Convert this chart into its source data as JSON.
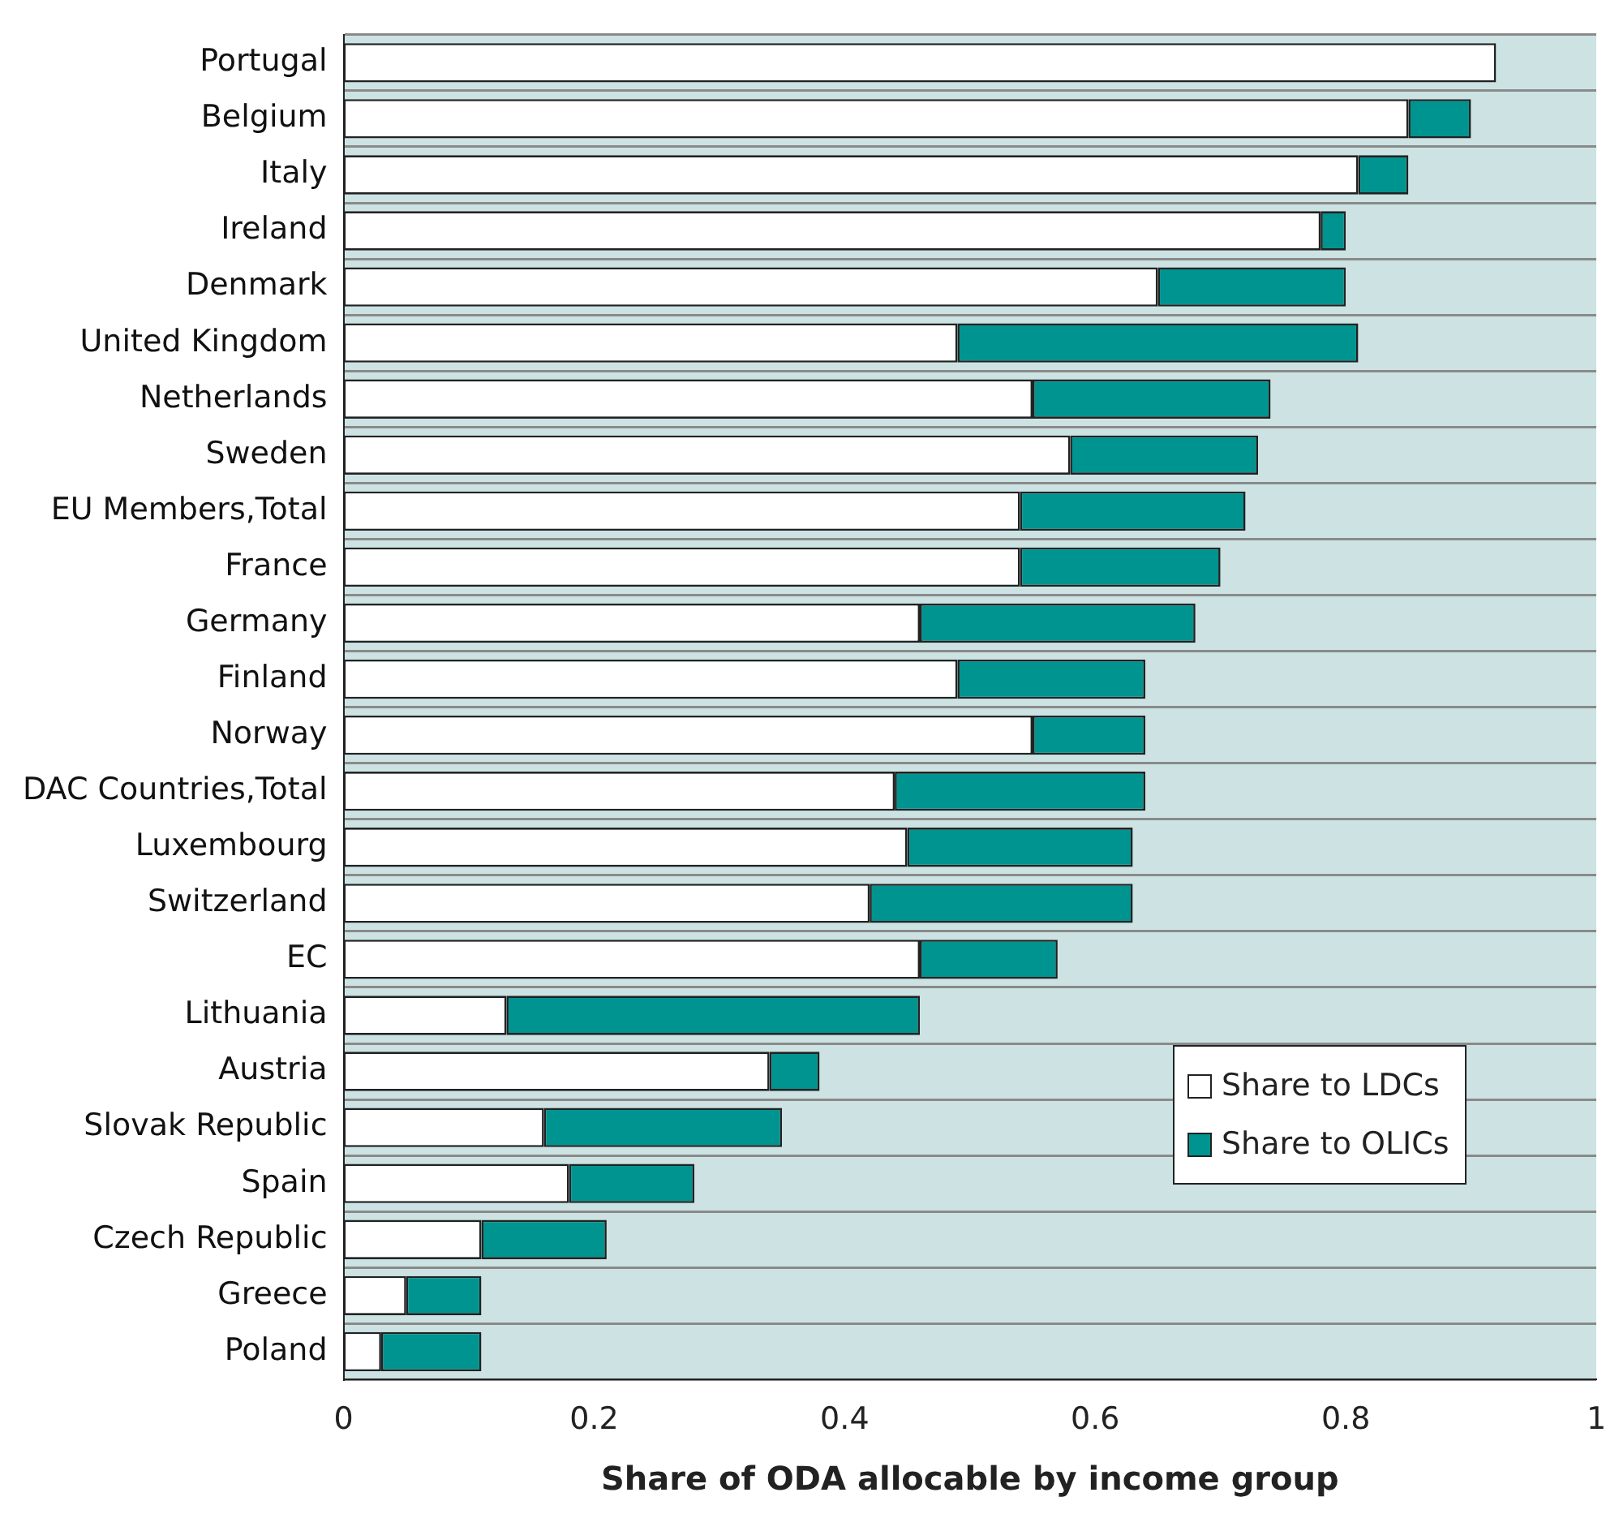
{
  "chart_data": {
    "type": "bar",
    "orientation": "horizontal",
    "stacked": true,
    "xlabel": "Share of ODA allocable by income group",
    "categories": [
      "Portugal",
      "Belgium",
      "Italy",
      "Ireland",
      "Denmark",
      "United Kingdom",
      "Netherlands",
      "Sweden",
      "EU Members,Total",
      "France",
      "Germany",
      "Finland",
      "Norway",
      "DAC Countries,Total",
      "Luxembourg",
      "Switzerland",
      "EC",
      "Lithuania",
      "Austria",
      "Slovak Republic",
      "Spain",
      "Czech Republic",
      "Greece",
      "Poland"
    ],
    "series": [
      {
        "name": "Share to LDCs",
        "color": "#ffffff",
        "values": [
          0.92,
          0.85,
          0.81,
          0.78,
          0.65,
          0.49,
          0.55,
          0.58,
          0.54,
          0.54,
          0.46,
          0.49,
          0.55,
          0.44,
          0.45,
          0.42,
          0.46,
          0.13,
          0.34,
          0.16,
          0.18,
          0.11,
          0.05,
          0.03
        ]
      },
      {
        "name": "Share to OLICs",
        "color": "#009490",
        "values": [
          0,
          0.05,
          0.04,
          0.02,
          0.15,
          0.32,
          0.19,
          0.15,
          0.18,
          0.16,
          0.22,
          0.15,
          0.09,
          0.2,
          0.18,
          0.21,
          0.11,
          0.33,
          0.04,
          0.19,
          0.1,
          0.1,
          0.06,
          0.08
        ]
      }
    ],
    "xlim": [
      0,
      1
    ],
    "xticks": [
      0,
      0.2,
      0.4,
      0.6,
      0.8,
      1
    ],
    "grid": "y",
    "legend": "bottom right"
  }
}
